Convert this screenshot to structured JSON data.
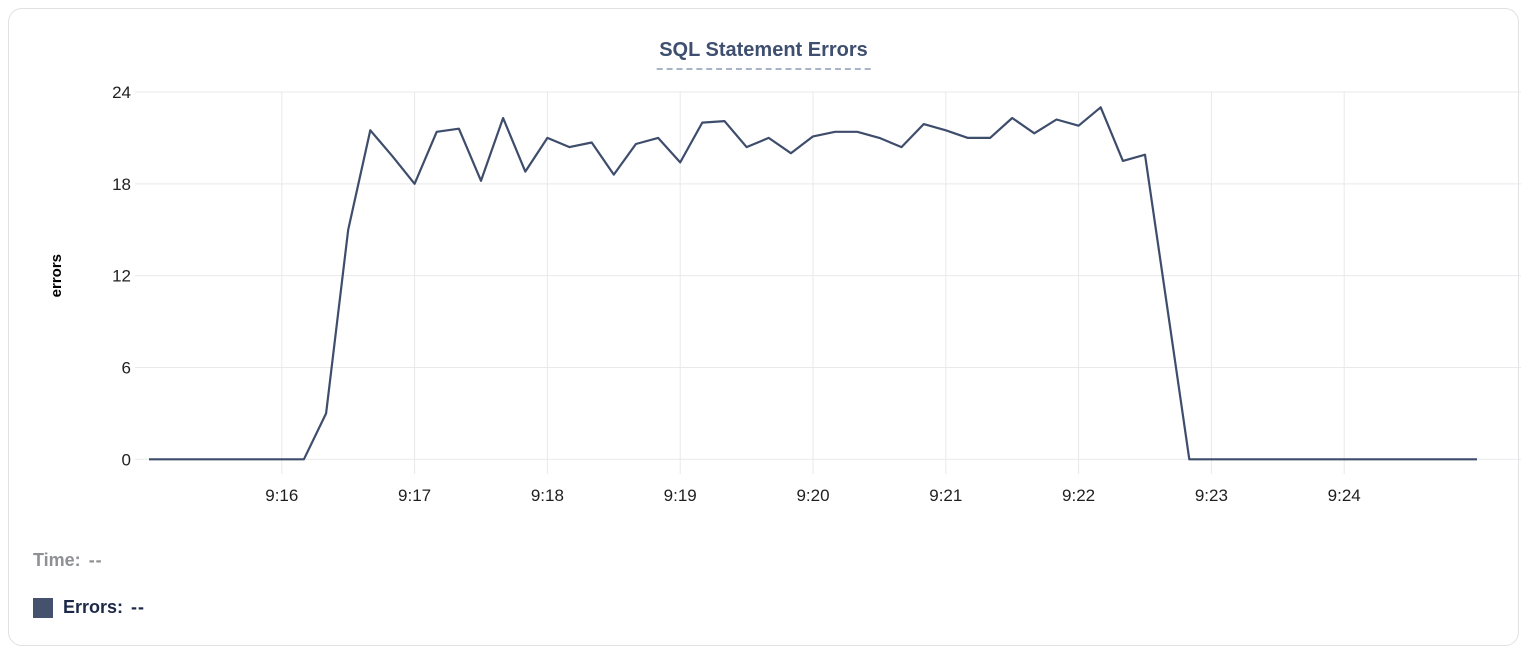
{
  "card": {
    "title": "SQL Statement Errors"
  },
  "chart_data": {
    "type": "line",
    "title": "SQL Statement Errors",
    "xlabel": "",
    "ylabel": "errors",
    "ylim": [
      0,
      24
    ],
    "y_ticks": [
      0,
      6,
      12,
      18,
      24
    ],
    "x_tick_labels": [
      "9:16",
      "9:17",
      "9:18",
      "9:19",
      "9:20",
      "9:21",
      "9:22",
      "9:23",
      "9:24"
    ],
    "start_time": "9:15:00",
    "end_time": "9:25:00",
    "interval_seconds": 10,
    "grid": true,
    "legend_position": "none",
    "line_color": "#3e4d6c",
    "grid_color": "#e8e9eb",
    "tick_label_color": "#1f1f1f",
    "values": [
      0,
      0,
      0,
      0,
      0,
      0,
      0,
      0,
      3,
      15,
      21.5,
      19.8,
      18,
      21.4,
      21.6,
      18.2,
      22.3,
      18.8,
      21,
      20.4,
      20.7,
      18.6,
      20.6,
      21,
      19.4,
      22,
      22.1,
      20.4,
      21,
      20,
      21.1,
      21.4,
      21.4,
      21,
      20.4,
      21.9,
      21.5,
      21,
      21,
      22.3,
      21.3,
      22.2,
      21.8,
      23,
      19.5,
      19.9,
      10,
      0,
      0,
      0,
      0,
      0,
      0,
      0,
      0,
      0,
      0,
      0,
      0,
      0,
      0
    ]
  },
  "readout": {
    "time_label": "Time:",
    "time_value": "--",
    "errors_label": "Errors:",
    "errors_value": "--",
    "swatch_color": "#44526e"
  }
}
